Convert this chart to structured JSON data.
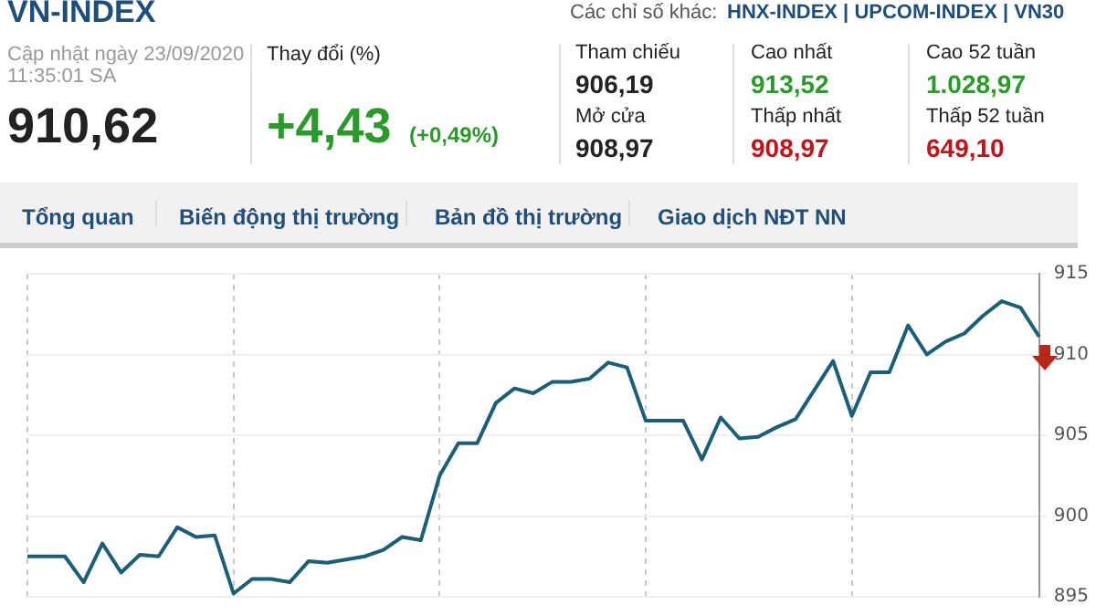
{
  "chart_data": [
    {
      "type": "other",
      "annotations": [
        "VN-INDEX",
        "Các chỉ số khác:",
        "HNX-INDEX  |  UPCOM-INDEX  |  VN30",
        "Cập nhật ngày 23/09/2020",
        "11:35:01 SA",
        "910,62",
        "Thay đổi (%)",
        "+4,43",
        "(+0,49%)",
        "Tham chiếu",
        "906,19",
        "Mở cửa",
        "908,97",
        "Cao nhất",
        "913,52",
        "Thấp nhất",
        "908,97",
        "Cao 52 tuần",
        "1.028,97",
        "Thấp 52 tuần",
        "649,10",
        "Tổng quan",
        "Biến động thị trường",
        "Bản đồ thị trường",
        "Giao dịch NĐT NN"
      ]
    },
    {
      "type": "line",
      "color": "#1a5e78",
      "ylim": [
        895,
        915
      ],
      "yticks": [
        895,
        900,
        905,
        910,
        915
      ],
      "grid": true,
      "tick_labels": "y",
      "categories": [
        null,
        null,
        null,
        null,
        null,
        null,
        null,
        null,
        null,
        null,
        null,
        null,
        null,
        null,
        null,
        null,
        null,
        null,
        null,
        null,
        null,
        null,
        null,
        null,
        null,
        null,
        null,
        null,
        null,
        null,
        null,
        null,
        null,
        null,
        null,
        null,
        null,
        null,
        null,
        null,
        null,
        null,
        null,
        null,
        null,
        null,
        null,
        null,
        null,
        null,
        null,
        null,
        null,
        null,
        null
      ],
      "values": [
        897.5,
        897.5,
        897.5,
        895.9,
        898.3,
        896.5,
        897.6,
        897.5,
        899.3,
        898.7,
        898.8,
        895.2,
        896.1,
        896.1,
        895.9,
        897.2,
        897.1,
        897.3,
        897.5,
        897.9,
        898.7,
        898.5,
        902.5,
        904.5,
        904.5,
        907,
        907.9,
        907.6,
        908.3,
        908.3,
        908.5,
        909.5,
        909.2,
        905.9,
        905.9,
        905.9,
        903.5,
        906.1,
        904.8,
        904.9,
        905.5,
        906,
        907.8,
        909.6,
        906.2,
        908.9,
        908.9,
        911.8,
        910,
        910.8,
        911.3,
        912.4,
        913.3,
        912.9,
        911.1
      ]
    }
  ]
}
